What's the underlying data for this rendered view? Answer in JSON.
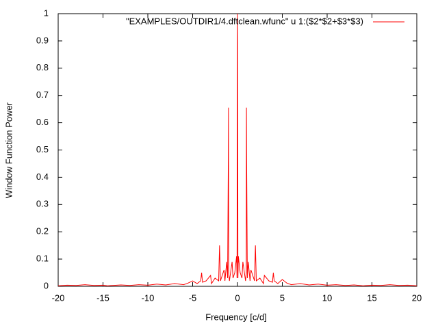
{
  "chart_data": {
    "type": "line",
    "xlabel": "Frequency [c/d]",
    "ylabel": "Window Function Power",
    "xlim": [
      -20,
      20
    ],
    "ylim": [
      0,
      1
    ],
    "xticks": [
      -20,
      -15,
      -10,
      -5,
      0,
      5,
      10,
      15,
      20
    ],
    "yticks": [
      0,
      0.1,
      0.2,
      0.3,
      0.4,
      0.5,
      0.6,
      0.7,
      0.8,
      0.9,
      1
    ],
    "legend": "top-right",
    "x": [
      -20,
      -19,
      -18,
      -17,
      -16,
      -15,
      -14.5,
      -13,
      -12,
      -11,
      -10,
      -9,
      -8,
      -7,
      -6,
      -5.5,
      -5,
      -4.5,
      -4.1,
      -4,
      -3.9,
      -3.5,
      -3,
      -2.9,
      -2.5,
      -2.1,
      -2,
      -1.9,
      -1.5,
      -1.4,
      -1.2,
      -1.1,
      -1.02,
      -1.0,
      -0.98,
      -0.9,
      -0.6,
      -0.5,
      -0.3,
      -0.1,
      -0.05,
      0,
      0.02,
      0.05,
      0.1,
      0.3,
      0.5,
      0.6,
      0.9,
      0.98,
      1.0,
      1.02,
      1.1,
      1.2,
      1.4,
      1.5,
      1.9,
      2,
      2.1,
      2.5,
      2.9,
      3,
      3.5,
      3.9,
      4,
      4.1,
      4.5,
      5,
      5.5,
      6,
      7,
      8,
      9,
      10,
      11,
      12,
      13,
      14,
      15,
      16,
      17,
      18,
      19,
      20
    ],
    "series": [
      {
        "name": "\"EXAMPLES/OUTDIR1/4.dftclean.wfunc\" u 1:($2*$2+$3*$3)",
        "color": "#ff0000",
        "values": [
          0.002,
          0.004,
          0.003,
          0.006,
          0.003,
          0.004,
          0.002,
          0.005,
          0.003,
          0.006,
          0.004,
          0.008,
          0.005,
          0.01,
          0.006,
          0.012,
          0.02,
          0.01,
          0.02,
          0.05,
          0.015,
          0.02,
          0.04,
          0.01,
          0.03,
          0.02,
          0.15,
          0.02,
          0.06,
          0.02,
          0.09,
          0.03,
          0.48,
          0.655,
          0.05,
          0.02,
          0.09,
          0.03,
          0.05,
          0.11,
          0.03,
          1.0,
          0.9,
          0.03,
          0.11,
          0.05,
          0.03,
          0.09,
          0.02,
          0.05,
          0.655,
          0.48,
          0.03,
          0.09,
          0.02,
          0.06,
          0.02,
          0.15,
          0.02,
          0.03,
          0.01,
          0.04,
          0.02,
          0.015,
          0.05,
          0.02,
          0.01,
          0.025,
          0.012,
          0.006,
          0.01,
          0.005,
          0.008,
          0.004,
          0.006,
          0.003,
          0.005,
          0.002,
          0.004,
          0.003,
          0.006,
          0.003,
          0.004,
          0.002
        ]
      }
    ]
  }
}
